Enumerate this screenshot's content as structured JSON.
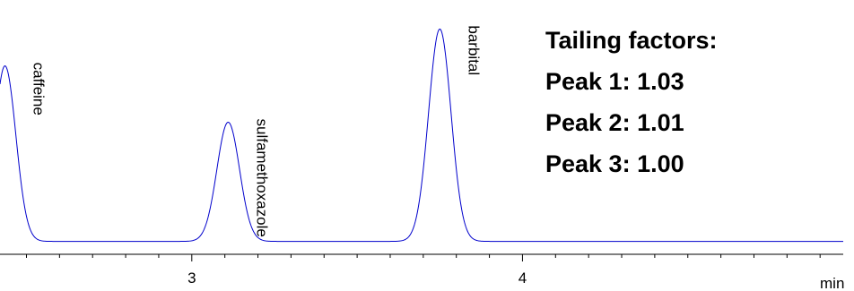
{
  "chart_data": {
    "type": "line",
    "title": "",
    "xlabel": "min",
    "ylabel": "",
    "xlim": [
      2.42,
      4.97
    ],
    "ylim": [
      0,
      1.0
    ],
    "xticks": [
      3,
      4
    ],
    "xticklabels": [
      "3",
      "4"
    ],
    "grid": false,
    "series": [
      {
        "color": "#0000cc",
        "baseline": 0.01,
        "peaks": [
          {
            "name": "caffeine",
            "rt": 2.435,
            "height": 0.81,
            "width": 0.032,
            "tailing": 1.03
          },
          {
            "name": "sulfamethoxazole",
            "rt": 3.11,
            "height": 0.55,
            "width": 0.034,
            "tailing": 1.01
          },
          {
            "name": "barbital",
            "rt": 3.75,
            "height": 0.98,
            "width": 0.034,
            "tailing": 1.0
          }
        ]
      }
    ],
    "annotations": {
      "heading": "Tailing factors:",
      "lines": [
        "Peak 1: 1.03",
        "Peak 2: 1.01",
        "Peak 3: 1.00"
      ]
    }
  }
}
